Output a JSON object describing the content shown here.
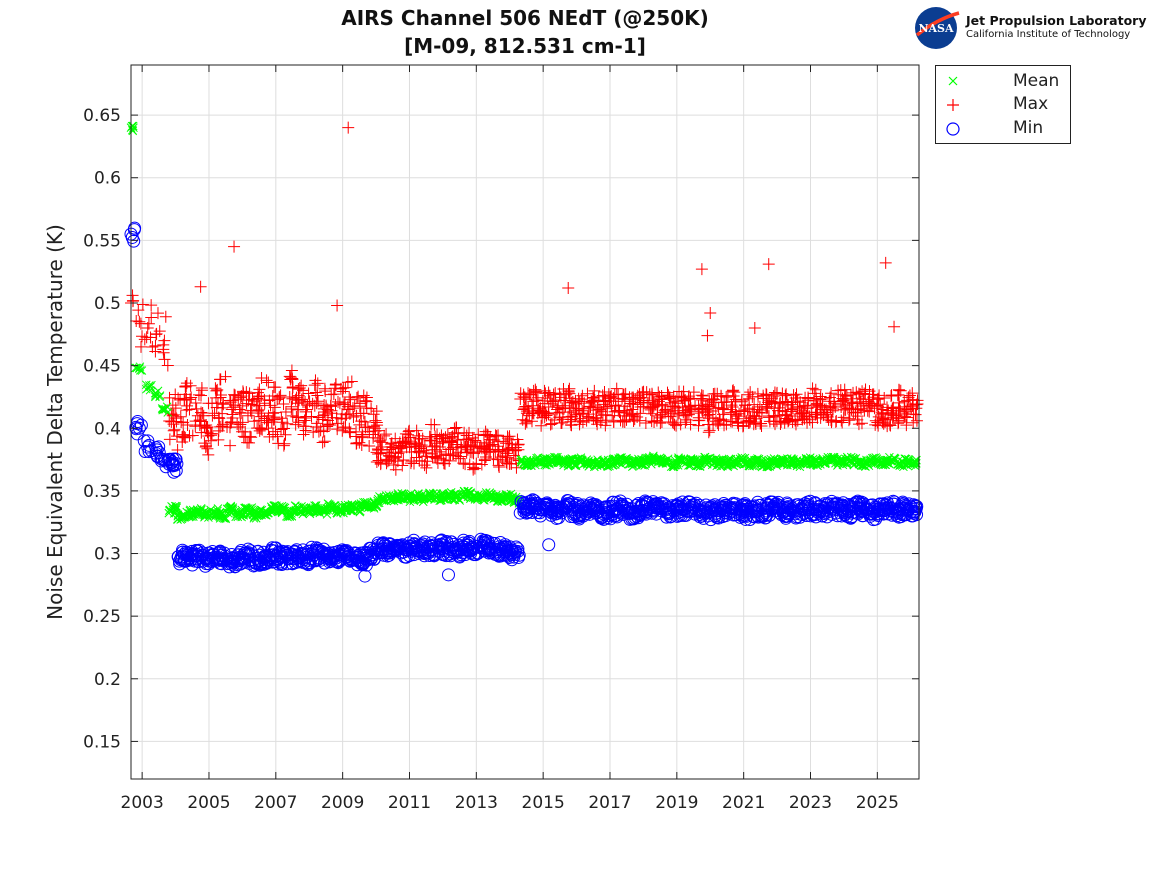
{
  "chart_data": {
    "type": "scatter",
    "title": [
      "AIRS Channel 506 NEdT (@250K)",
      "[M-09, 812.531 cm-1]"
    ],
    "xlabel": "",
    "ylabel": "Noise Equivalent Delta Temperature (K)",
    "xlim": [
      "2002-09",
      "2026-03"
    ],
    "ylim": [
      0.12,
      0.69
    ],
    "xticks": [
      "2003",
      "2005",
      "2007",
      "2009",
      "2011",
      "2013",
      "2015",
      "2017",
      "2019",
      "2021",
      "2023",
      "2025"
    ],
    "yticks": [
      "0.15",
      "0.2",
      "0.25",
      "0.3",
      "0.35",
      "0.4",
      "0.45",
      "0.5",
      "0.55",
      "0.6",
      "0.65"
    ],
    "grid": true,
    "legend_position": "outside-top-right",
    "x": [
      "2002-09",
      "2002-12",
      "2003-03",
      "2003-06",
      "2003-09",
      "2003-12",
      "2004-03",
      "2004-06",
      "2004-09",
      "2004-12",
      "2005-03",
      "2005-06",
      "2005-09",
      "2005-12",
      "2006-03",
      "2006-06",
      "2006-09",
      "2006-12",
      "2007-03",
      "2007-06",
      "2007-09",
      "2007-12",
      "2008-03",
      "2008-06",
      "2008-09",
      "2008-12",
      "2009-03",
      "2009-06",
      "2009-09",
      "2009-12",
      "2010-03",
      "2010-06",
      "2010-09",
      "2010-12",
      "2011-03",
      "2011-06",
      "2011-09",
      "2011-12",
      "2012-03",
      "2012-06",
      "2012-09",
      "2012-12",
      "2013-03",
      "2013-06",
      "2013-09",
      "2013-12",
      "2014-03",
      "2014-06",
      "2014-09",
      "2014-12",
      "2015-03",
      "2015-06",
      "2015-09",
      "2015-12",
      "2016-03",
      "2016-06",
      "2016-09",
      "2016-12",
      "2017-03",
      "2017-06",
      "2017-09",
      "2017-12",
      "2018-03",
      "2018-06",
      "2018-09",
      "2018-12",
      "2019-03",
      "2019-06",
      "2019-09",
      "2019-12",
      "2020-03",
      "2020-06",
      "2020-09",
      "2020-12",
      "2021-03",
      "2021-06",
      "2021-09",
      "2021-12",
      "2022-03",
      "2022-06",
      "2022-09",
      "2022-12",
      "2023-03",
      "2023-06",
      "2023-09",
      "2023-12",
      "2024-03",
      "2024-06",
      "2024-09",
      "2024-12",
      "2025-03",
      "2025-06",
      "2025-09",
      "2025-12",
      "2026-03"
    ],
    "series": [
      {
        "name": "Mean",
        "marker": "x",
        "color": "#00ff00",
        "values": [
          0.64,
          0.448,
          0.432,
          0.428,
          0.415,
          0.335,
          0.33,
          0.332,
          0.334,
          0.331,
          0.333,
          0.33,
          0.335,
          0.332,
          0.334,
          0.331,
          0.333,
          0.336,
          0.335,
          0.332,
          0.336,
          0.334,
          0.336,
          0.334,
          0.337,
          0.335,
          0.337,
          0.336,
          0.338,
          0.339,
          0.343,
          0.344,
          0.345,
          0.344,
          0.345,
          0.344,
          0.346,
          0.345,
          0.346,
          0.345,
          0.347,
          0.346,
          0.345,
          0.346,
          0.344,
          0.345,
          0.343,
          0.372,
          0.373,
          0.374,
          0.373,
          0.374,
          0.372,
          0.373,
          0.374,
          0.372,
          0.373,
          0.372,
          0.373,
          0.374,
          0.372,
          0.373,
          0.374,
          0.375,
          0.373,
          0.372,
          0.374,
          0.373,
          0.372,
          0.374,
          0.373,
          0.372,
          0.373,
          0.374,
          0.372,
          0.373,
          0.372,
          0.373,
          0.374,
          0.373,
          0.372,
          0.374,
          0.373,
          0.374,
          0.375,
          0.373,
          0.374,
          0.373,
          0.372,
          0.374,
          0.373,
          0.374,
          0.372,
          0.373,
          0.372
        ]
      },
      {
        "name": "Max",
        "marker": "+",
        "color": "#ff0000",
        "values": [
          0.5,
          0.485,
          0.48,
          0.475,
          0.47,
          0.41,
          0.405,
          0.415,
          0.41,
          0.4,
          0.412,
          0.42,
          0.405,
          0.415,
          0.41,
          0.418,
          0.42,
          0.412,
          0.408,
          0.425,
          0.42,
          0.415,
          0.418,
          0.41,
          0.412,
          0.42,
          0.415,
          0.41,
          0.405,
          0.395,
          0.385,
          0.383,
          0.38,
          0.388,
          0.385,
          0.382,
          0.39,
          0.385,
          0.383,
          0.387,
          0.385,
          0.38,
          0.384,
          0.386,
          0.383,
          0.38,
          0.382,
          0.415,
          0.418,
          0.416,
          0.417,
          0.415,
          0.418,
          0.416,
          0.414,
          0.417,
          0.415,
          0.416,
          0.418,
          0.414,
          0.415,
          0.417,
          0.416,
          0.418,
          0.415,
          0.414,
          0.417,
          0.416,
          0.415,
          0.41,
          0.416,
          0.415,
          0.417,
          0.414,
          0.416,
          0.415,
          0.417,
          0.416,
          0.414,
          0.415,
          0.417,
          0.416,
          0.418,
          0.415,
          0.414,
          0.417,
          0.416,
          0.415,
          0.418,
          0.416,
          0.415,
          0.414,
          0.417,
          0.415,
          0.416
        ]
      },
      {
        "name": "Min",
        "marker": "o",
        "color": "#0000ff",
        "values": [
          0.555,
          0.4,
          0.385,
          0.38,
          0.375,
          0.37,
          0.297,
          0.296,
          0.298,
          0.295,
          0.297,
          0.296,
          0.294,
          0.297,
          0.298,
          0.296,
          0.297,
          0.299,
          0.297,
          0.296,
          0.298,
          0.297,
          0.299,
          0.298,
          0.297,
          0.298,
          0.299,
          0.297,
          0.296,
          0.299,
          0.303,
          0.302,
          0.304,
          0.303,
          0.305,
          0.304,
          0.303,
          0.305,
          0.304,
          0.303,
          0.305,
          0.304,
          0.306,
          0.304,
          0.303,
          0.302,
          0.301,
          0.336,
          0.338,
          0.335,
          0.336,
          0.334,
          0.337,
          0.335,
          0.333,
          0.336,
          0.334,
          0.332,
          0.335,
          0.336,
          0.333,
          0.334,
          0.336,
          0.337,
          0.335,
          0.334,
          0.336,
          0.337,
          0.335,
          0.333,
          0.334,
          0.335,
          0.336,
          0.334,
          0.333,
          0.335,
          0.334,
          0.336,
          0.333,
          0.335,
          0.334,
          0.336,
          0.335,
          0.334,
          0.336,
          0.335,
          0.334,
          0.336,
          0.335,
          0.333,
          0.334,
          0.336,
          0.335,
          0.334,
          0.336
        ]
      }
    ],
    "outliers": {
      "Max": [
        [
          "2004-10",
          0.513
        ],
        [
          "2005-10",
          0.545
        ],
        [
          "2008-11",
          0.498
        ],
        [
          "2009-03",
          0.64
        ],
        [
          "2015-10",
          0.512
        ],
        [
          "2019-10",
          0.527
        ],
        [
          "2019-12",
          0.474
        ],
        [
          "2020-01",
          0.492
        ],
        [
          "2021-05",
          0.48
        ],
        [
          "2021-10",
          0.531
        ],
        [
          "2025-04",
          0.532
        ],
        [
          "2025-07",
          0.481
        ]
      ],
      "Min": [
        [
          "2015-03",
          0.307
        ],
        [
          "2012-03",
          0.283
        ],
        [
          "2009-09",
          0.282
        ]
      ]
    }
  },
  "logo": {
    "line1": "Jet Propulsion Laboratory",
    "line2": "California Institute of Technology",
    "badge": "NASA"
  }
}
